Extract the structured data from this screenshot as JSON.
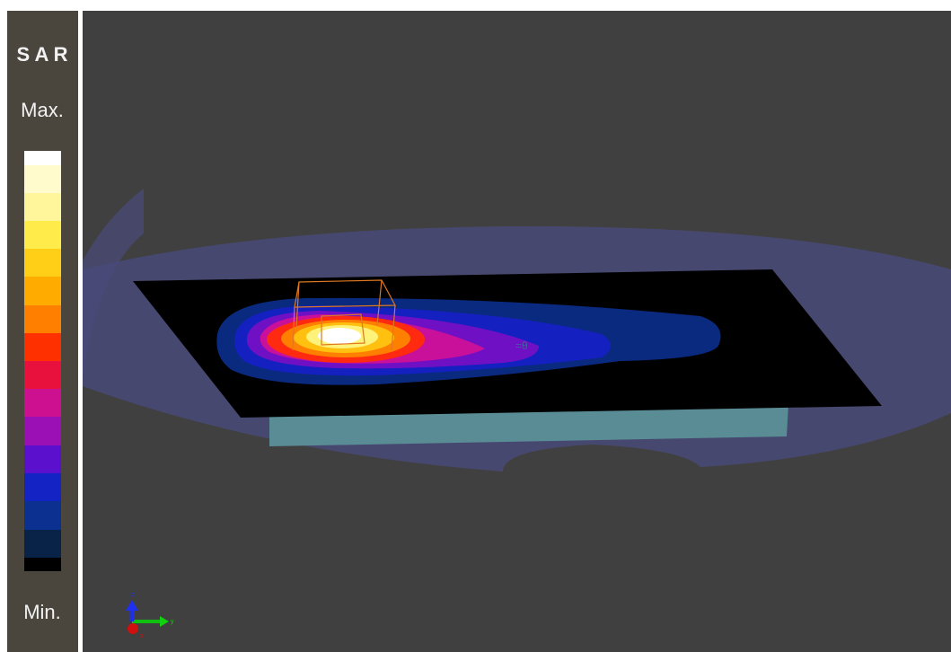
{
  "legend": {
    "title": "S A R",
    "max_label": "Max.",
    "min_label": "Min."
  },
  "axes": {
    "z": "z",
    "y": "y",
    "x": "x"
  }
}
